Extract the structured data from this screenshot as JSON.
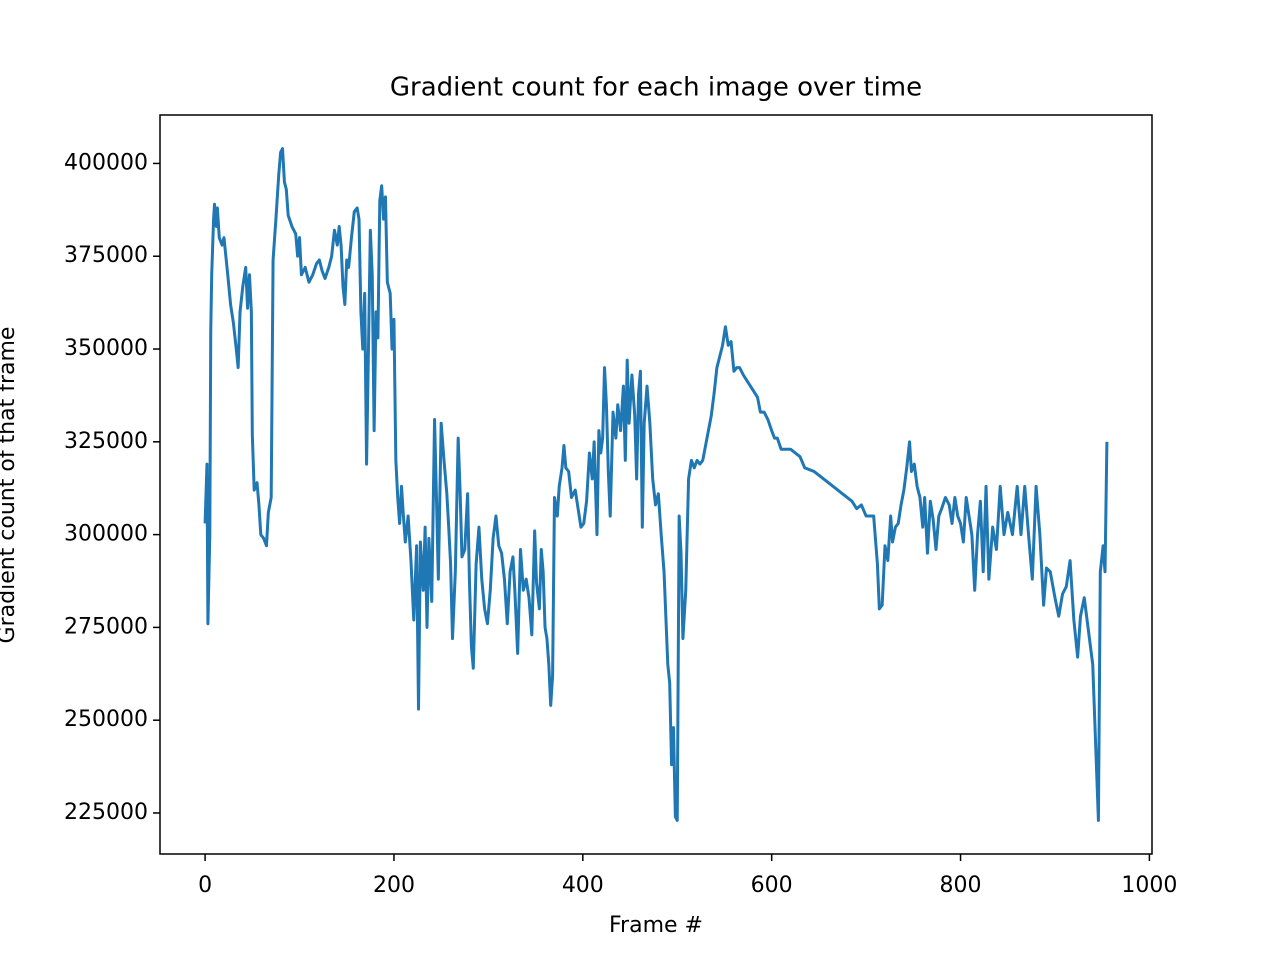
{
  "chart_data": {
    "type": "line",
    "title": "Gradient count for each image over time",
    "x_label": "Frame #",
    "y_label": "Gradient count of that frame",
    "color": "#1f77b4",
    "x": [
      0,
      2,
      3,
      5,
      6,
      7,
      9,
      10,
      12,
      13,
      15,
      18,
      20,
      24,
      27,
      30,
      33,
      35,
      37,
      40,
      43,
      45,
      47,
      49,
      50,
      52,
      55,
      57,
      59,
      62,
      65,
      67,
      70,
      72,
      75,
      78,
      80,
      82,
      84,
      86,
      88,
      92,
      96,
      98,
      100,
      102,
      106,
      110,
      114,
      118,
      121,
      124,
      127,
      131,
      134,
      137,
      140,
      142,
      144,
      146,
      148,
      150,
      152,
      155,
      158,
      161,
      163,
      165,
      167,
      169,
      171,
      173,
      175,
      177,
      179,
      181,
      183,
      185,
      187,
      189,
      191,
      193,
      196,
      198,
      200,
      202,
      204,
      206,
      208,
      210,
      212,
      215,
      218,
      221,
      224,
      226,
      228,
      231,
      233,
      235,
      237,
      240,
      243,
      245,
      247,
      250,
      253,
      256,
      258,
      260,
      262,
      265,
      268,
      270,
      272,
      275,
      278,
      280,
      282,
      284,
      287,
      290,
      293,
      296,
      299,
      302,
      305,
      308,
      311,
      314,
      317,
      320,
      323,
      326,
      328,
      331,
      334,
      337,
      340,
      343,
      346,
      349,
      351,
      354,
      356,
      358,
      360,
      362,
      364,
      366,
      368,
      370,
      373,
      375,
      378,
      380,
      382,
      385,
      388,
      392,
      395,
      398,
      401,
      404,
      407,
      410,
      412,
      415,
      417,
      419,
      421,
      423,
      425,
      427,
      429,
      432,
      435,
      437,
      440,
      443,
      445,
      447,
      449,
      452,
      455,
      457,
      459,
      461,
      463,
      465,
      468,
      471,
      474,
      477,
      480,
      483,
      486,
      490,
      492,
      494,
      496,
      498,
      500,
      502,
      504,
      506,
      509,
      512,
      515,
      518,
      521,
      524,
      527,
      530,
      533,
      536,
      539,
      542,
      545,
      548,
      551,
      554,
      557,
      560,
      563,
      566,
      570,
      575,
      580,
      585,
      588,
      592,
      596,
      600,
      603,
      606,
      610,
      620,
      630,
      635,
      645,
      655,
      665,
      675,
      685,
      690,
      695,
      700,
      708,
      712,
      714,
      717,
      720,
      723,
      726,
      728,
      731,
      734,
      737,
      740,
      743,
      746,
      748,
      751,
      754,
      757,
      760,
      762,
      765,
      768,
      771,
      774,
      777,
      780,
      784,
      788,
      791,
      794,
      797,
      800,
      803,
      806,
      809,
      812,
      815,
      818,
      821,
      824,
      827,
      830,
      834,
      838,
      842,
      846,
      850,
      855,
      860,
      864,
      868,
      872,
      876,
      880,
      884,
      888,
      891,
      895,
      900,
      904,
      908,
      912,
      916,
      920,
      924,
      927,
      931,
      935,
      940,
      946,
      948,
      951,
      953,
      955
    ],
    "values": [
      303000,
      319000,
      276000,
      300000,
      355000,
      370000,
      385000,
      389000,
      383000,
      388000,
      380000,
      378000,
      380000,
      370000,
      362000,
      357000,
      350000,
      345000,
      360000,
      367000,
      372000,
      361000,
      370000,
      360000,
      327000,
      312000,
      314000,
      308000,
      300000,
      299000,
      297000,
      306000,
      310000,
      374000,
      385000,
      397000,
      403000,
      404000,
      395000,
      393000,
      386000,
      383000,
      381000,
      375000,
      380000,
      370000,
      372000,
      368000,
      370000,
      373000,
      374000,
      371000,
      369000,
      372000,
      375000,
      382000,
      378000,
      383000,
      378000,
      367000,
      362000,
      374000,
      372000,
      380000,
      387000,
      388000,
      385000,
      360000,
      350000,
      365000,
      319000,
      350000,
      382000,
      370000,
      328000,
      360000,
      353000,
      390000,
      394000,
      385000,
      391000,
      368000,
      365000,
      350000,
      358000,
      320000,
      310000,
      303000,
      313000,
      305000,
      298000,
      305000,
      293000,
      277000,
      297000,
      253000,
      298000,
      285000,
      302000,
      275000,
      299000,
      282000,
      331000,
      310000,
      288000,
      330000,
      320000,
      311000,
      302000,
      292000,
      272000,
      290000,
      326000,
      312000,
      294000,
      296000,
      311000,
      287000,
      270000,
      264000,
      292000,
      302000,
      288000,
      280000,
      276000,
      285000,
      299000,
      305000,
      297000,
      295000,
      288000,
      276000,
      290000,
      294000,
      285000,
      268000,
      296000,
      285000,
      288000,
      283000,
      273000,
      301000,
      287000,
      280000,
      296000,
      290000,
      275000,
      272000,
      265000,
      254000,
      262000,
      310000,
      305000,
      313000,
      318000,
      324000,
      318000,
      317000,
      310000,
      312000,
      307000,
      302000,
      303000,
      309000,
      322000,
      315000,
      325000,
      300000,
      328000,
      322000,
      326000,
      345000,
      335000,
      317000,
      305000,
      333000,
      326000,
      335000,
      328000,
      340000,
      320000,
      347000,
      330000,
      343000,
      332000,
      315000,
      338000,
      344000,
      302000,
      330000,
      340000,
      330000,
      315000,
      308000,
      311000,
      300000,
      290000,
      265000,
      260000,
      238000,
      248000,
      224000,
      223000,
      305000,
      295000,
      272000,
      285000,
      315000,
      320000,
      318000,
      320000,
      319000,
      320000,
      324000,
      328000,
      332000,
      338000,
      345000,
      348000,
      351000,
      356000,
      351000,
      352000,
      344000,
      345000,
      345000,
      343000,
      341000,
      339000,
      337000,
      333000,
      333000,
      331000,
      328000,
      326000,
      326000,
      323000,
      323000,
      321000,
      318000,
      317000,
      315000,
      313000,
      311000,
      309000,
      307000,
      308000,
      305000,
      305000,
      292000,
      280000,
      281000,
      297000,
      293000,
      305000,
      298000,
      302000,
      303000,
      308000,
      312000,
      318000,
      325000,
      317000,
      319000,
      313000,
      310000,
      302000,
      310000,
      295000,
      309000,
      304000,
      296000,
      305000,
      307000,
      310000,
      308000,
      303000,
      310000,
      305000,
      303000,
      298000,
      310000,
      305000,
      300000,
      285000,
      300000,
      309000,
      290000,
      313000,
      288000,
      302000,
      296000,
      313000,
      300000,
      306000,
      300000,
      313000,
      300000,
      313000,
      300000,
      288000,
      313000,
      300000,
      281000,
      291000,
      290000,
      283000,
      278000,
      284000,
      286000,
      293000,
      277000,
      267000,
      278000,
      283000,
      275000,
      265000,
      223000,
      290000,
      297000,
      290000,
      325000
    ],
    "xlim": [
      -47.75,
      1002.75
    ],
    "xticks": [
      0,
      200,
      400,
      600,
      800,
      1000
    ],
    "ylim": [
      213950,
      413050
    ],
    "yticks": [
      225000,
      250000,
      275000,
      300000,
      325000,
      350000,
      375000,
      400000
    ]
  }
}
